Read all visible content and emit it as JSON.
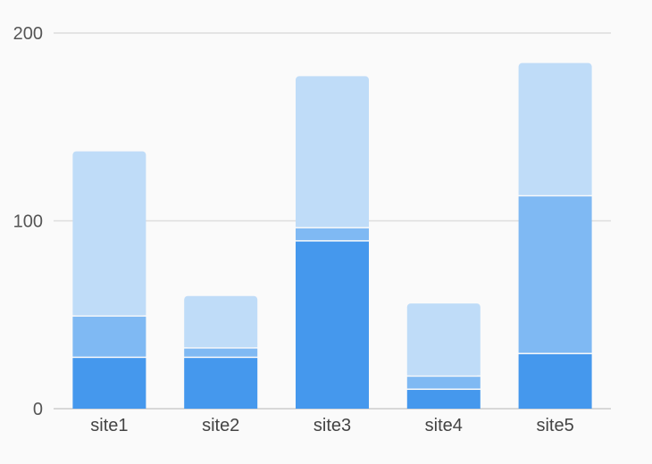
{
  "chart_data": {
    "type": "bar",
    "stacked": true,
    "categories": [
      "site1",
      "site2",
      "site3",
      "site4",
      "site5"
    ],
    "series": [
      {
        "values": [
          27,
          27,
          89,
          10,
          29
        ],
        "color": "#4598ed"
      },
      {
        "values": [
          22,
          5,
          7,
          7,
          84
        ],
        "color": "#7fb9f3"
      },
      {
        "values": [
          88,
          28,
          81,
          39,
          71
        ],
        "color": "#bfdcf8"
      }
    ],
    "ylim": [
      0,
      200
    ],
    "yticks": [
      0,
      100,
      200
    ],
    "grid": true,
    "legend": "none"
  }
}
